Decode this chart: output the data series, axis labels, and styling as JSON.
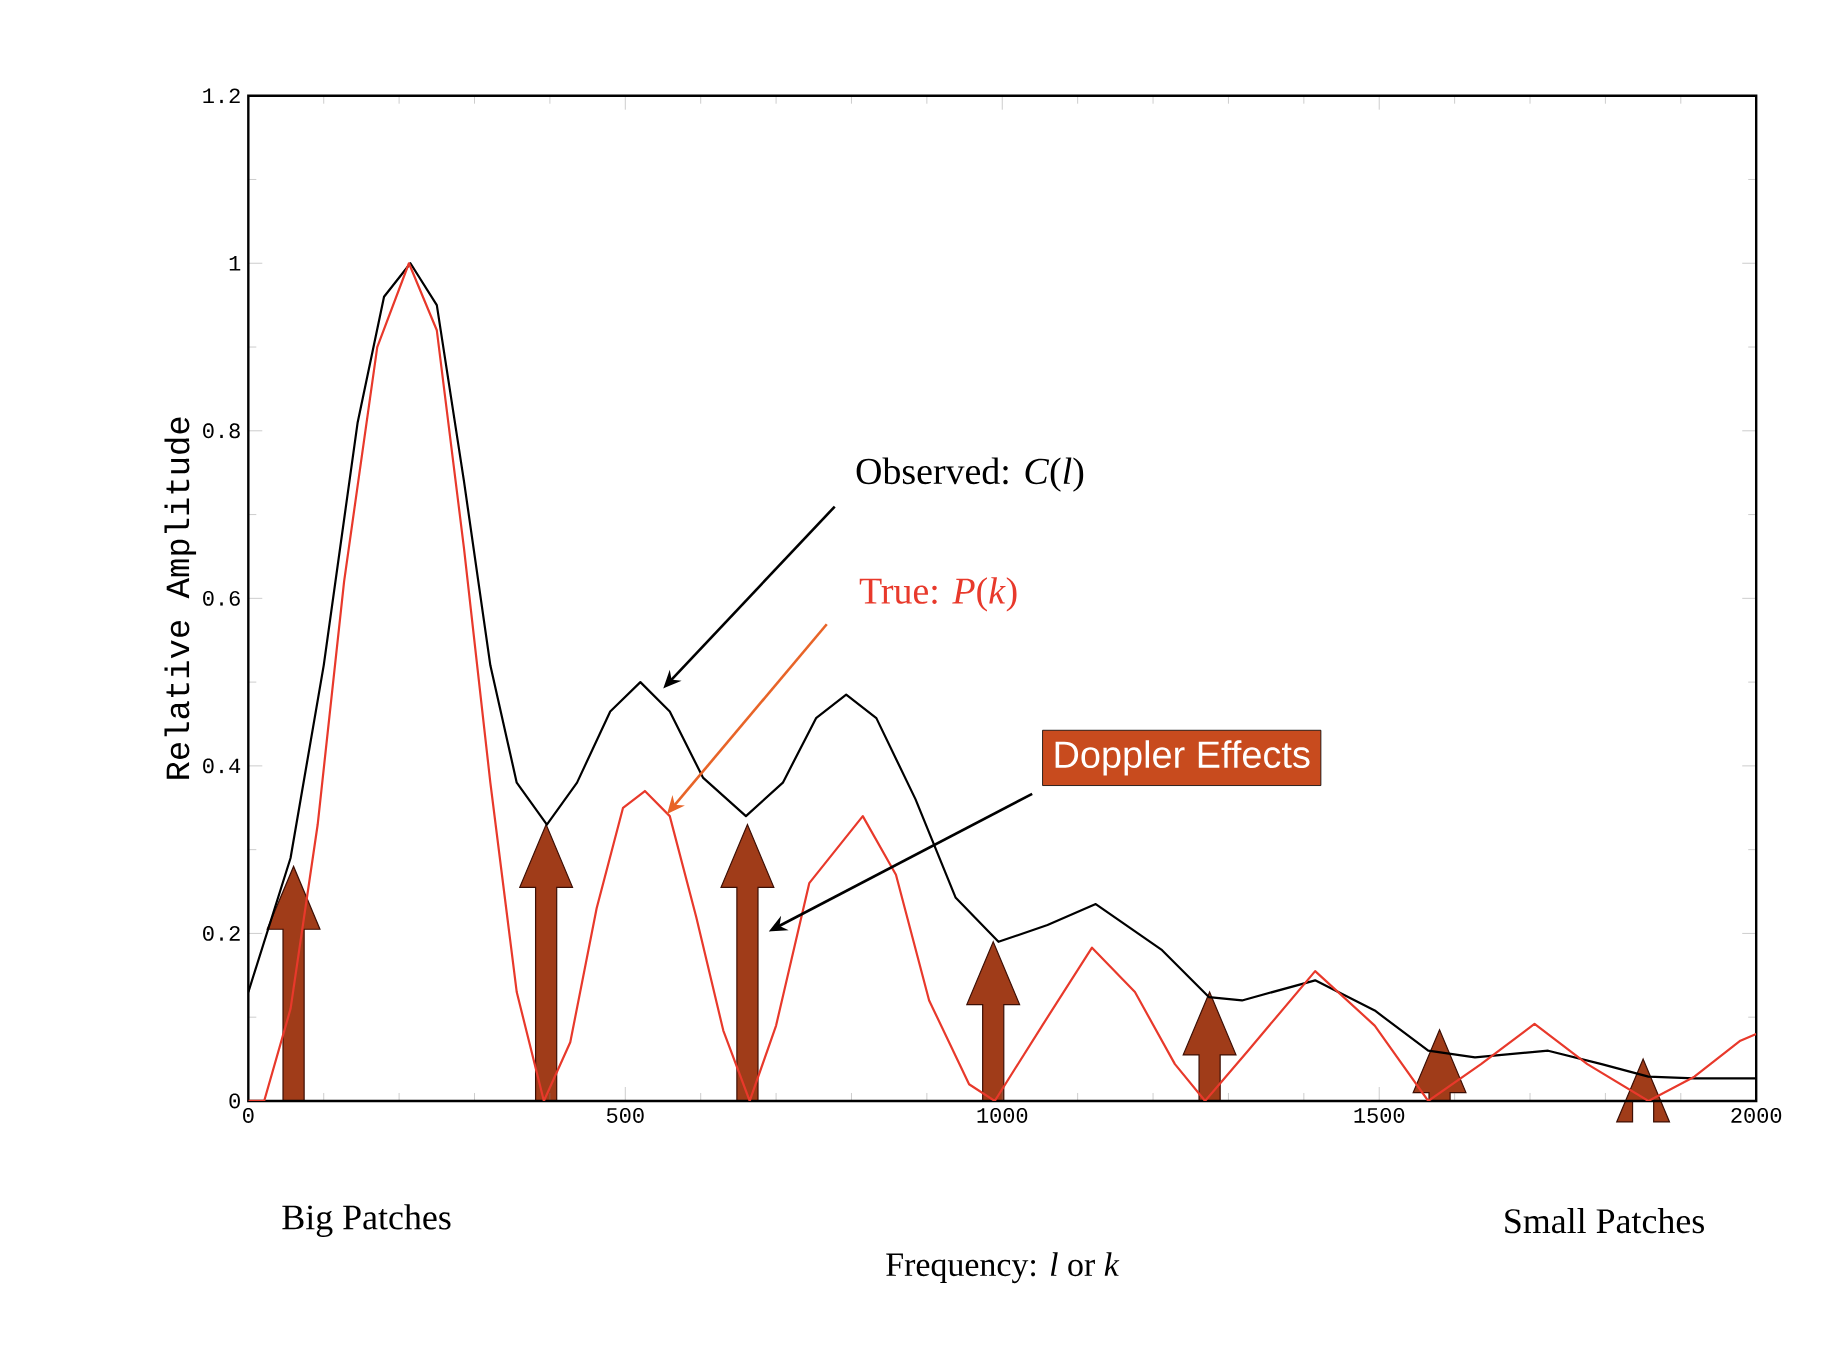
{
  "chart_data": {
    "type": "line",
    "xlabel": "Frequency: *l* or *k*",
    "ylabel": "Relative Amplitude",
    "xlim": [
      0,
      2000
    ],
    "ylim": [
      0,
      1.2
    ],
    "xticks": [
      0,
      500,
      1000,
      1500,
      2000
    ],
    "yticks": [
      0,
      0.2,
      0.4,
      0.6,
      0.8,
      1,
      1.2
    ],
    "grid": false,
    "marker": "none",
    "line_style": "solid",
    "series": [
      {
        "color": "#000000",
        "x": [
          0,
          56,
          100,
          145,
          180,
          215,
          250,
          286,
          321,
          356,
          396,
          436,
          480,
          520,
          559,
          603,
          660,
          709,
          753,
          793,
          833,
          885,
          938,
          995,
          1060,
          1124,
          1212,
          1274,
          1318,
          1415,
          1494,
          1565,
          1627,
          1724,
          1795,
          1857,
          1918,
          2000
        ],
        "values": [
          0.13,
          0.29,
          0.52,
          0.81,
          0.96,
          1.0,
          0.95,
          0.74,
          0.52,
          0.38,
          0.33,
          0.38,
          0.465,
          0.5,
          0.465,
          0.386,
          0.34,
          0.38,
          0.457,
          0.485,
          0.457,
          0.36,
          0.243,
          0.19,
          0.21,
          0.235,
          0.18,
          0.124,
          0.12,
          0.144,
          0.108,
          0.06,
          0.052,
          0.06,
          0.044,
          0.029,
          0.027,
          0.027
        ]
      },
      {
        "color": "#e8392b",
        "x": [
          0,
          21,
          56,
          92,
          127,
          171,
          213,
          250,
          286,
          321,
          356,
          392,
          427,
          462,
          497,
          526,
          559,
          594,
          630,
          665,
          700,
          744,
          815,
          859,
          903,
          956,
          990,
          1053,
          1119,
          1176,
          1229,
          1269,
          1326,
          1415,
          1494,
          1565,
          1635,
          1706,
          1776,
          1857,
          1918,
          1979,
          2000
        ],
        "values": [
          0,
          0,
          0.11,
          0.33,
          0.62,
          0.9,
          1.0,
          0.92,
          0.66,
          0.38,
          0.13,
          0,
          0.07,
          0.23,
          0.35,
          0.37,
          0.34,
          0.22,
          0.084,
          0,
          0.09,
          0.26,
          0.34,
          0.27,
          0.12,
          0.02,
          0,
          0.09,
          0.183,
          0.13,
          0.044,
          0,
          0.06,
          0.155,
          0.09,
          0,
          0.044,
          0.092,
          0.044,
          0,
          0.029,
          0.072,
          0.08
        ]
      }
    ],
    "annotations": [
      {
        "text": "Observed: *C*(*l*)",
        "x": 545,
        "y": 0.49
      },
      {
        "text": "True: *P*(*k*)",
        "x": 550,
        "y": 0.34
      },
      "Doppler Effects",
      "Big Patches",
      "Small Patches"
    ]
  }
}
